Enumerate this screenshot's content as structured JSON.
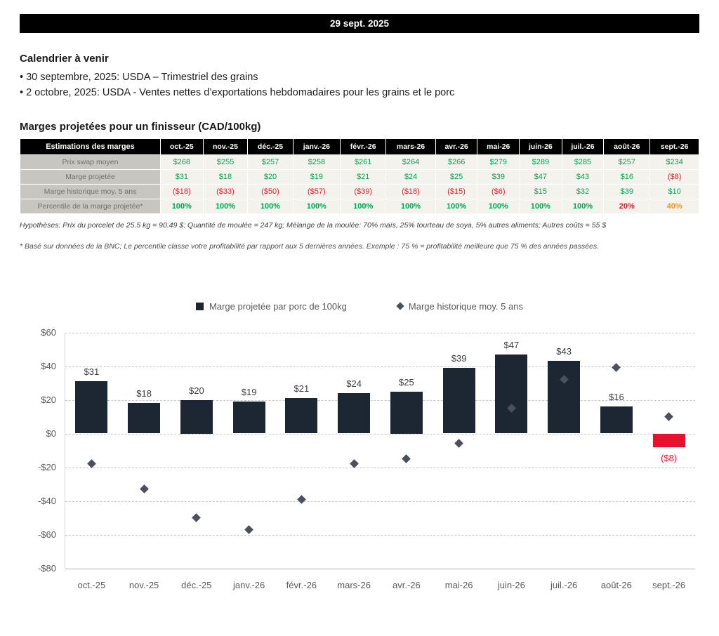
{
  "banner": {
    "date": "29 sept. 2025"
  },
  "calendar": {
    "title": "Calendrier à venir",
    "items": [
      "• 30 septembre, 2025: USDA – Trimestriel des grains",
      "• 2 octobre, 2025: USDA - Ventes nettes d’exportations hebdomadaires pour les grains et le porc"
    ]
  },
  "palette": {
    "green": "#00a551",
    "red": "#ec1b23",
    "orange": "#f0941f",
    "bar": "#1c2733",
    "bar_negative": "#e8112d",
    "diamond": "#4a515c",
    "header_bg": "#000000",
    "header_text": "#ffffff",
    "label_bg": "#c7c6c1",
    "label_text": "#70706b",
    "cell_bg": "#f4f2ec"
  },
  "margins_table": {
    "title": "Marges projetées pour un finisseur (CAD/100kg)",
    "header": [
      "Estimations des marges",
      "oct.-25",
      "nov.-25",
      "déc.-25",
      "janv.-26",
      "févr.-26",
      "mars-26",
      "avr.-26",
      "mai-26",
      "juin-26",
      "juil.-26",
      "août-26",
      "sept.-26"
    ],
    "rows": [
      {
        "label": "Prix swap moyen",
        "values": [
          "$268",
          "$255",
          "$257",
          "$258",
          "$261",
          "$264",
          "$266",
          "$279",
          "$289",
          "$285",
          "$257",
          "$234"
        ],
        "value_colors": [
          "green",
          "green",
          "green",
          "green",
          "green",
          "green",
          "green",
          "green",
          "green",
          "green",
          "green",
          "green"
        ],
        "bold": false
      },
      {
        "label": "Marge projetée",
        "values": [
          "$31",
          "$18",
          "$20",
          "$19",
          "$21",
          "$24",
          "$25",
          "$39",
          "$47",
          "$43",
          "$16",
          "($8)"
        ],
        "value_colors": [
          "green",
          "green",
          "green",
          "green",
          "green",
          "green",
          "green",
          "green",
          "green",
          "green",
          "green",
          "red"
        ],
        "bold": false
      },
      {
        "label": "Marge historique moy. 5 ans",
        "values": [
          "($18)",
          "($33)",
          "($50)",
          "($57)",
          "($39)",
          "($18)",
          "($15)",
          "($6)",
          "$15",
          "$32",
          "$39",
          "$10"
        ],
        "value_colors": [
          "red",
          "red",
          "red",
          "red",
          "red",
          "red",
          "red",
          "red",
          "green",
          "green",
          "green",
          "green"
        ],
        "bold": false
      },
      {
        "label": "Percentile de la marge projetée*",
        "values": [
          "100%",
          "100%",
          "100%",
          "100%",
          "100%",
          "100%",
          "100%",
          "100%",
          "100%",
          "100%",
          "20%",
          "40%"
        ],
        "value_colors": [
          "green",
          "green",
          "green",
          "green",
          "green",
          "green",
          "green",
          "green",
          "green",
          "green",
          "red",
          "orange"
        ],
        "bold": true
      }
    ],
    "footnote1": "Hypothèses: Prix du porcelet de 25.5 kg = 90.49 $; Quantité de moulée = 247 kg; Mélange de la moulée: 70% maïs, 25% tourteau de soya, 5% autres aliments; Autres coûts = 55 $",
    "footnote2": "* Basé sur données de la BNC; Le percentile classe votre profitabilité par rapport aux 5 dernières années. Exemple : 75 % = profitabilité meilleure que 75 % des années passées."
  },
  "chart_data": {
    "type": "bar",
    "title": "",
    "categories": [
      "oct.-25",
      "nov.-25",
      "déc.-25",
      "janv.-26",
      "févr.-26",
      "mars-26",
      "avr.-26",
      "mai-26",
      "juin-26",
      "juil.-26",
      "août-26",
      "sept.-26"
    ],
    "series": [
      {
        "name": "Marge projetée par porc de 100kg",
        "type": "bar",
        "values": [
          31,
          18,
          20,
          19,
          21,
          24,
          25,
          39,
          47,
          43,
          16,
          -8
        ],
        "labels": [
          "$31",
          "$18",
          "$20",
          "$19",
          "$21",
          "$24",
          "$25",
          "$39",
          "$47",
          "$43",
          "$16",
          "($8)"
        ]
      },
      {
        "name": "Marge historique moy. 5 ans",
        "type": "scatter",
        "values": [
          -18,
          -33,
          -50,
          -57,
          -39,
          -18,
          -15,
          -6,
          15,
          32,
          39,
          10
        ]
      }
    ],
    "ylim": [
      -80,
      60
    ],
    "yticks": [
      {
        "label": "$60",
        "value": 60
      },
      {
        "label": "$40",
        "value": 40
      },
      {
        "label": "$20",
        "value": 20
      },
      {
        "label": "$0",
        "value": 0
      },
      {
        "label": "-$20",
        "value": -20
      },
      {
        "label": "-$40",
        "value": -40
      },
      {
        "label": "-$60",
        "value": -60
      },
      {
        "label": "-$80",
        "value": -80
      }
    ],
    "grid": "horizontal dashed",
    "legend_position": "top center"
  }
}
